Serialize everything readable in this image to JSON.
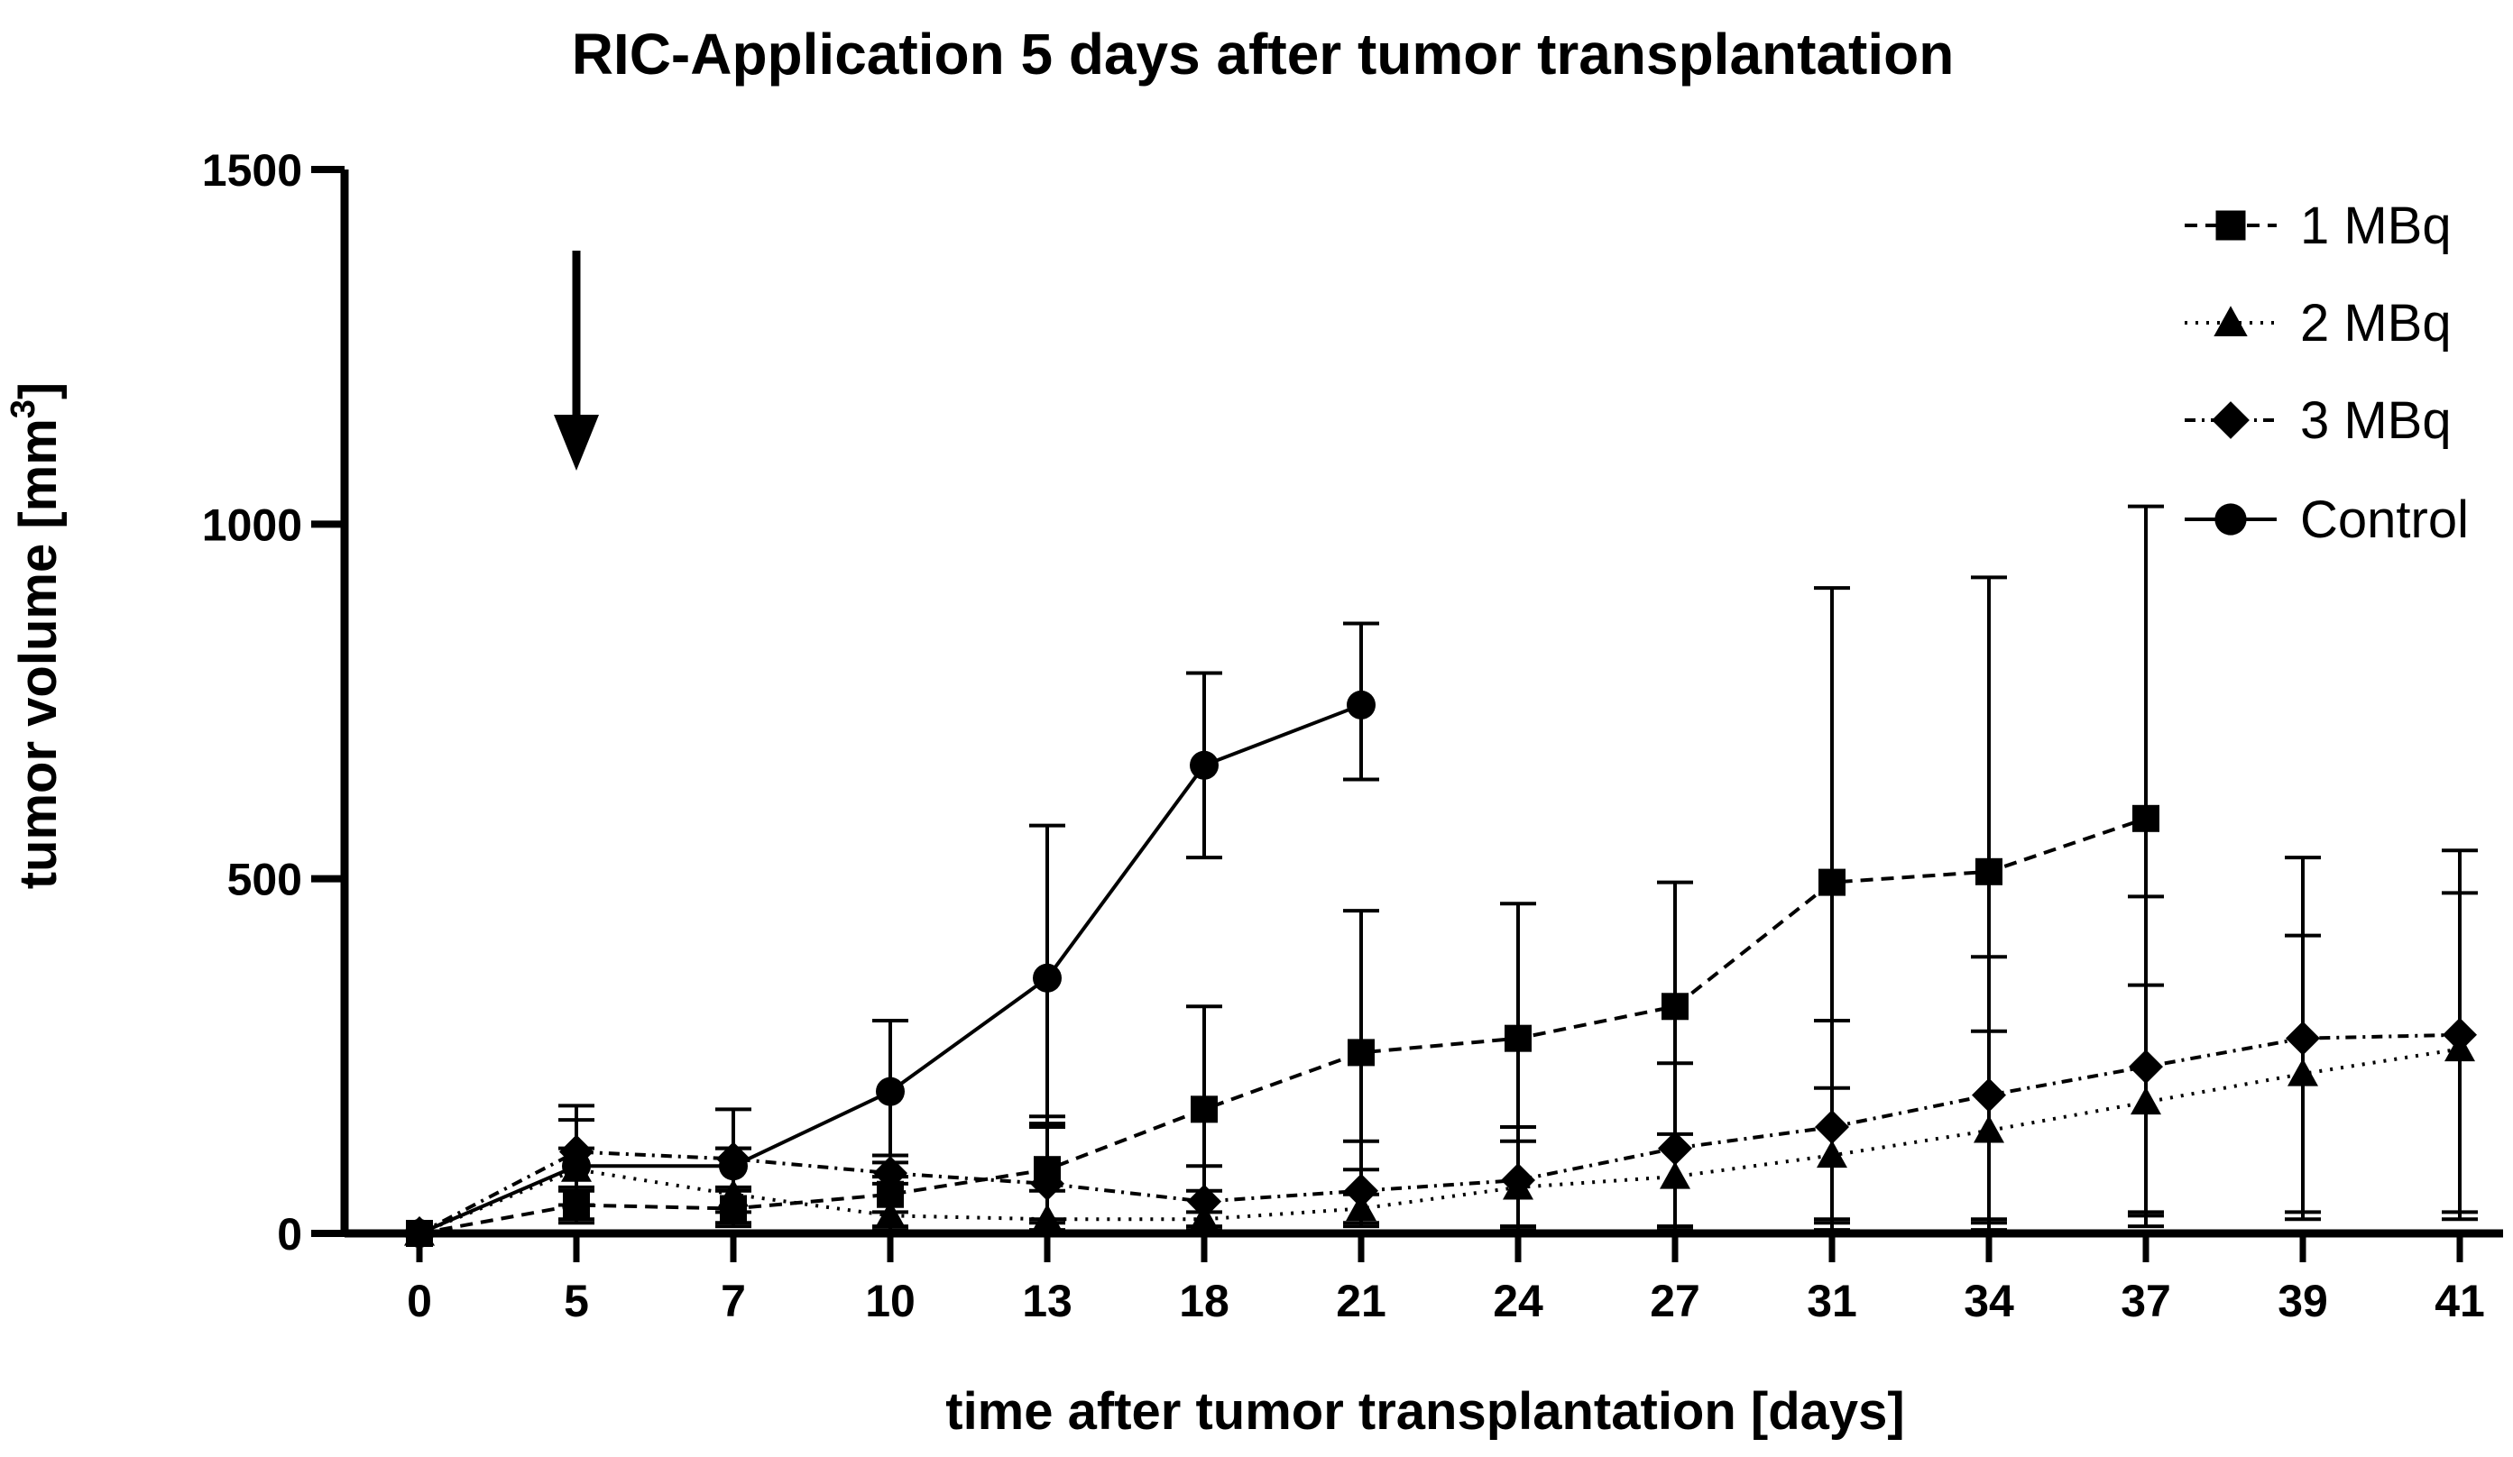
{
  "chart_data": {
    "type": "line",
    "title": "RIC-Application 5 days after tumor transplantation",
    "xlabel": "time after tumor transplantation [days]",
    "ylabel_main": "tumor volume [mm",
    "ylabel_sup": "3",
    "ylabel_close": "]",
    "x_categories": [
      "0",
      "5",
      "7",
      "10",
      "13",
      "18",
      "21",
      "24",
      "27",
      "31",
      "34",
      "37",
      "39",
      "41"
    ],
    "y_ticks": [
      "0",
      "500",
      "1000",
      "1500"
    ],
    "ylim": [
      0,
      1500
    ],
    "legend_position": "top-right",
    "annotation": "arrow marking application at day 5",
    "annotation_day": "5",
    "series": [
      {
        "name": "1 MBq",
        "marker": "square",
        "dash": "dashed",
        "values": [
          0,
          40,
          35,
          55,
          90,
          175,
          255,
          275,
          320,
          495,
          510,
          585,
          null,
          null
        ],
        "err_upper": [
          0,
          65,
          65,
          80,
          165,
          320,
          455,
          465,
          495,
          910,
          925,
          1025,
          null,
          null
        ],
        "err_lower": [
          0,
          15,
          10,
          10,
          15,
          30,
          55,
          10,
          10,
          20,
          20,
          30,
          null,
          null
        ]
      },
      {
        "name": "2 MBq",
        "marker": "triangle",
        "dash": "dotted",
        "values": [
          0,
          90,
          55,
          25,
          20,
          20,
          35,
          65,
          80,
          110,
          145,
          185,
          225,
          260
        ],
        "err_upper": [
          0,
          160,
          120,
          70,
          60,
          60,
          90,
          130,
          140,
          205,
          285,
          350,
          420,
          480
        ],
        "err_lower": [
          0,
          20,
          15,
          5,
          5,
          5,
          10,
          5,
          5,
          5,
          5,
          25,
          30,
          30
        ]
      },
      {
        "name": "3 MBq",
        "marker": "diamond",
        "dash": "dashdot",
        "values": [
          0,
          115,
          105,
          85,
          70,
          45,
          60,
          75,
          120,
          150,
          195,
          235,
          275,
          280
        ],
        "err_upper": [
          0,
          180,
          175,
          100,
          155,
          95,
          130,
          150,
          240,
          300,
          390,
          475,
          530,
          540
        ],
        "err_lower": [
          0,
          40,
          30,
          30,
          20,
          10,
          15,
          10,
          10,
          15,
          15,
          10,
          20,
          20
        ]
      },
      {
        "name": "Control",
        "marker": "circle",
        "dash": "solid",
        "values": [
          0,
          95,
          95,
          200,
          360,
          660,
          745,
          null,
          null,
          null,
          null,
          null,
          null,
          null
        ],
        "err_upper": [
          0,
          120,
          120,
          300,
          575,
          790,
          860,
          null,
          null,
          null,
          null,
          null,
          null,
          null
        ],
        "err_lower": [
          0,
          60,
          60,
          110,
          150,
          530,
          640,
          null,
          null,
          null,
          null,
          null,
          null,
          null
        ]
      }
    ]
  }
}
